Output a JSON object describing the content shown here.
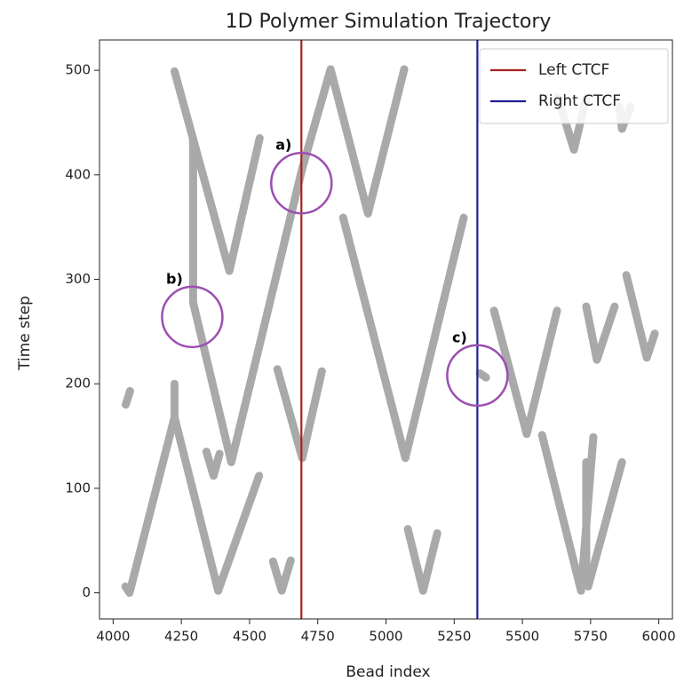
{
  "chart_data": {
    "type": "line",
    "title": "1D Polymer Simulation Trajectory",
    "x_label": "Bead index",
    "y_label": "Time step",
    "xlim": [
      3950,
      6050
    ],
    "ylim": [
      -25,
      529
    ],
    "xticks": [
      4000,
      4250,
      4500,
      4750,
      5000,
      5250,
      5500,
      5750,
      6000
    ],
    "yticks": [
      0,
      100,
      200,
      300,
      400,
      500
    ],
    "grid": false,
    "legend_position": "upper right",
    "series": [
      {
        "color": "#a9a9a9",
        "x": [
          4045,
          4060,
          4225,
          4385,
          4535
        ],
        "y": [
          6,
          0,
          168,
          2,
          112
        ]
      },
      {
        "color": "#a9a9a9",
        "x": [
          4225,
          4225
        ],
        "y": [
          200,
          168
        ]
      },
      {
        "color": "#a9a9a9",
        "x": [
          4225,
          4426,
          4537
        ],
        "y": [
          499,
          308,
          435
        ]
      },
      {
        "color": "#a9a9a9",
        "x": [
          4293,
          4293,
          4433,
          4693,
          4797,
          4934,
          5067
        ],
        "y": [
          435,
          278,
          125,
          406,
          501,
          363,
          501
        ]
      },
      {
        "color": "#a9a9a9",
        "x": [
          4602,
          4693,
          4765
        ],
        "y": [
          214,
          129,
          212
        ]
      },
      {
        "color": "#a9a9a9",
        "x": [
          4586,
          4618,
          4651
        ],
        "y": [
          30,
          2,
          31
        ]
      },
      {
        "color": "#a9a9a9",
        "x": [
          4843,
          5071,
          5285
        ],
        "y": [
          359,
          129,
          359
        ]
      },
      {
        "color": "#a9a9a9",
        "x": [
          5080,
          5136,
          5188
        ],
        "y": [
          61,
          2,
          57
        ]
      },
      {
        "color": "#a9a9a9",
        "x": [
          4342,
          4368,
          4390
        ],
        "y": [
          135,
          112,
          133
        ]
      },
      {
        "color": "#a9a9a9",
        "x": [
          4046,
          4062
        ],
        "y": [
          180,
          193
        ]
      },
      {
        "color": "#a9a9a9",
        "x": [
          5344,
          5367
        ],
        "y": [
          210,
          206
        ]
      },
      {
        "color": "#a9a9a9",
        "x": [
          5396,
          5516,
          5627
        ],
        "y": [
          270,
          152,
          270
        ]
      },
      {
        "color": "#a9a9a9",
        "x": [
          5572,
          5715,
          5760
        ],
        "y": [
          151,
          2,
          149
        ]
      },
      {
        "color": "#a9a9a9",
        "x": [
          5734,
          5734
        ],
        "y": [
          125,
          10
        ]
      },
      {
        "color": "#a9a9a9",
        "x": [
          5630,
          5689,
          5734
        ],
        "y": [
          474,
          424,
          474
        ]
      },
      {
        "color": "#a9a9a9",
        "x": [
          5734,
          5773,
          5838
        ],
        "y": [
          274,
          223,
          274
        ]
      },
      {
        "color": "#a9a9a9",
        "x": [
          5881,
          5956,
          5985
        ],
        "y": [
          304,
          225,
          248
        ]
      },
      {
        "color": "#a9a9a9",
        "x": [
          5865,
          5741
        ],
        "y": [
          125,
          6
        ]
      },
      {
        "color": "#a9a9a9",
        "x": [
          5855,
          5865,
          5897
        ],
        "y": [
          465,
          444,
          465
        ]
      }
    ],
    "vlines": [
      {
        "name": "Left CTCF",
        "x": 4690,
        "color": "#a52222"
      },
      {
        "name": "Right CTCF",
        "x": 5335,
        "color": "#1f1f96"
      }
    ],
    "annotations": [
      {
        "text": "a)",
        "x": 4690,
        "y": 392,
        "color": "#9b4fb0"
      },
      {
        "text": "b)",
        "x": 4290,
        "y": 264,
        "color": "#9b4fb0"
      },
      {
        "text": "c)",
        "x": 5335,
        "y": 208,
        "color": "#9b4fb0"
      }
    ]
  }
}
